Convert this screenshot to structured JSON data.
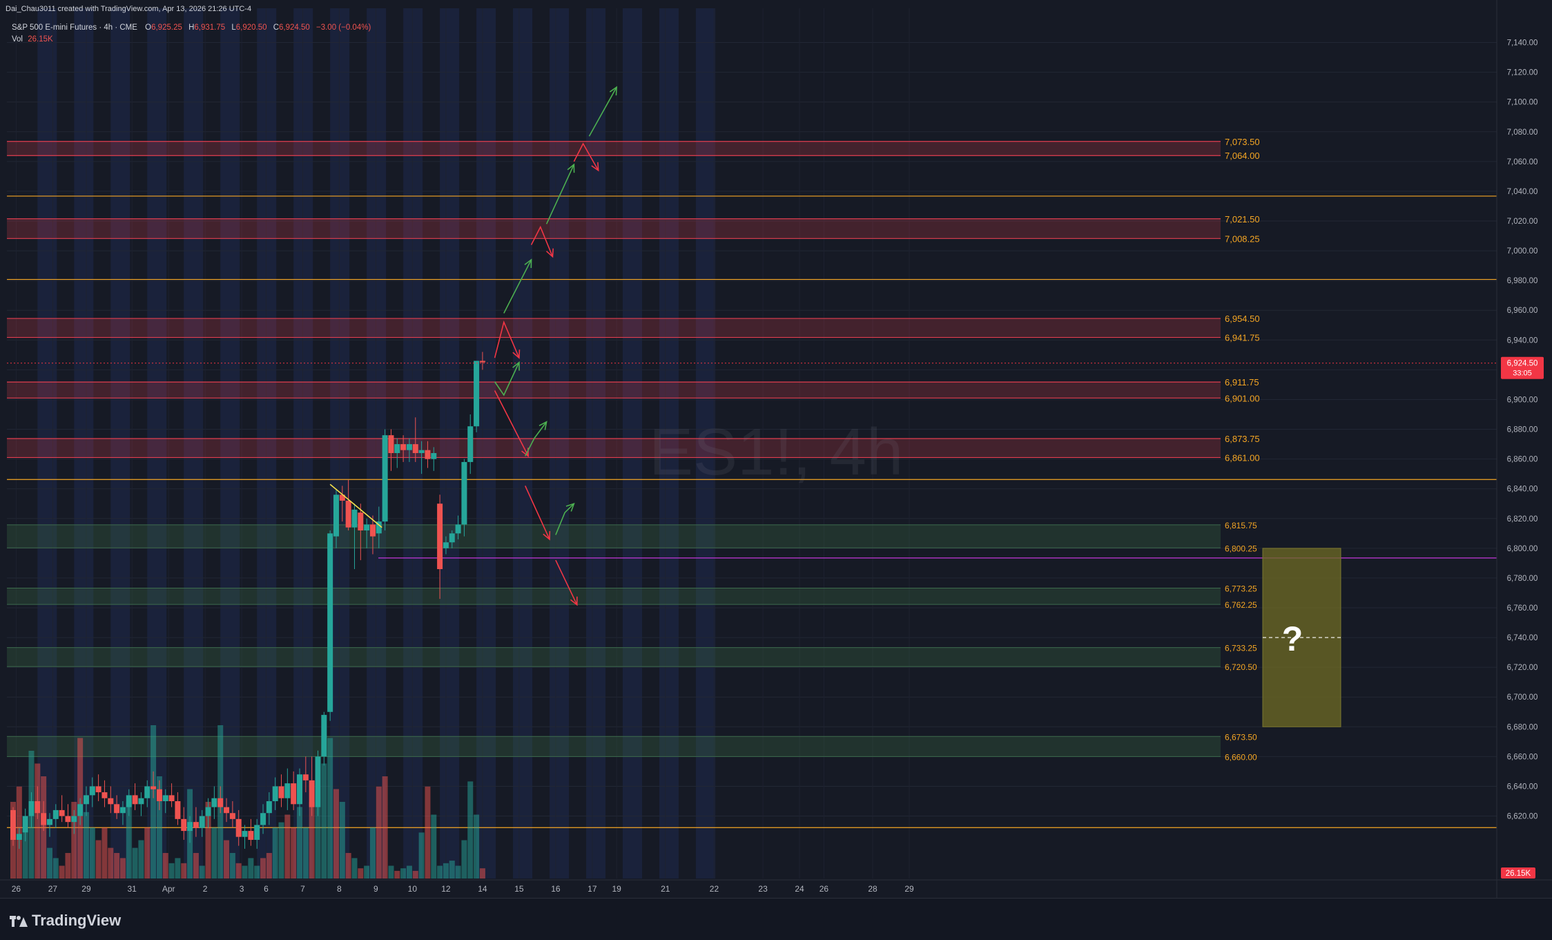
{
  "header": {
    "credit": "Dai_Chau3011 created with TradingView.com, Apr 13, 2026 21:26 UTC-4",
    "symbol_line": "S&P 500 E-mini Futures · 4h · CME",
    "ohlc": {
      "o_label": "O",
      "o": "6,925.25",
      "h_label": "H",
      "h": "6,931.75",
      "l_label": "L",
      "l": "6,920.50",
      "c_label": "C",
      "c": "6,924.50",
      "change": "−3.00 (−0.04%)"
    },
    "vol_label": "Vol",
    "vol_value": "26.15K"
  },
  "watermark": "ES1!, 4h",
  "footer": {
    "logo_text": "TradingView"
  },
  "colors": {
    "up": "#26a69a",
    "down": "#ef5350",
    "res_line": "#e23e4f",
    "sup_line": "#3d6b4d",
    "orange": "#f5a623",
    "purple": "#c337d9",
    "green_arrow": "#4caf50",
    "red_arrow": "#f23645",
    "box": "#5b5820"
  },
  "question_mark": "?",
  "chart_data": {
    "type": "candlestick",
    "symbol": "ES1!",
    "timeframe": "4h",
    "y_axis": {
      "ylim": [
        6578,
        7163
      ],
      "ticks": [
        6620,
        6640,
        6660,
        6680,
        6700,
        6720,
        6740,
        6760,
        6780,
        6800,
        6820,
        6840,
        6860,
        6880,
        6900,
        6920,
        6940,
        6960,
        6980,
        7000,
        7020,
        7040,
        7060,
        7080,
        7100,
        7120,
        7140
      ],
      "tick_labels": [
        "6,620.00",
        "6,640.00",
        "6,660.00",
        "6,680.00",
        "6,700.00",
        "6,720.00",
        "6,740.00",
        "6,760.00",
        "6,780.00",
        "6,800.00",
        "6,820.00",
        "6,840.00",
        "6,860.00",
        "6,880.00",
        "6,900.00",
        "6,920.00",
        "6,940.00",
        "6,960.00",
        "6,980.00",
        "7,000.00",
        "7,020.00",
        "7,040.00",
        "7,060.00",
        "7,080.00",
        "7,100.00",
        "7,120.00",
        "7,140.00"
      ]
    },
    "x_axis": {
      "tick_labels": [
        "26",
        "27",
        "29",
        "31",
        "Apr",
        "2",
        "3",
        "6",
        "7",
        "8",
        "9",
        "10",
        "12",
        "14",
        "15",
        "16",
        "17",
        "19",
        "21",
        "22",
        "23",
        "24",
        "26",
        "28",
        "29"
      ],
      "tick_bar_index": [
        0.5,
        6.5,
        12,
        19.5,
        25.5,
        31.5,
        37.5,
        41.5,
        47.5,
        53.5,
        59.5,
        65.5,
        71,
        77,
        83,
        89,
        95,
        99,
        107,
        115,
        123,
        129,
        133,
        141,
        147
      ]
    },
    "candles": [
      {
        "o": 6624,
        "h": 6626,
        "l": 6600,
        "c": 6604
      },
      {
        "o": 6604,
        "h": 6612,
        "l": 6598,
        "c": 6608
      },
      {
        "o": 6609,
        "h": 6625,
        "l": 6603,
        "c": 6620
      },
      {
        "o": 6620,
        "h": 6636,
        "l": 6612,
        "c": 6630
      },
      {
        "o": 6630,
        "h": 6640,
        "l": 6618,
        "c": 6622
      },
      {
        "o": 6622,
        "h": 6630,
        "l": 6610,
        "c": 6614
      },
      {
        "o": 6614,
        "h": 6622,
        "l": 6606,
        "c": 6618
      },
      {
        "o": 6618,
        "h": 6628,
        "l": 6612,
        "c": 6624
      },
      {
        "o": 6624,
        "h": 6634,
        "l": 6616,
        "c": 6620
      },
      {
        "o": 6620,
        "h": 6628,
        "l": 6612,
        "c": 6616
      },
      {
        "o": 6616,
        "h": 6624,
        "l": 6608,
        "c": 6620
      },
      {
        "o": 6620,
        "h": 6632,
        "l": 6614,
        "c": 6628
      },
      {
        "o": 6628,
        "h": 6640,
        "l": 6620,
        "c": 6634
      },
      {
        "o": 6634,
        "h": 6646,
        "l": 6626,
        "c": 6640
      },
      {
        "o": 6640,
        "h": 6648,
        "l": 6630,
        "c": 6636
      },
      {
        "o": 6636,
        "h": 6644,
        "l": 6626,
        "c": 6632
      },
      {
        "o": 6632,
        "h": 6640,
        "l": 6622,
        "c": 6628
      },
      {
        "o": 6628,
        "h": 6634,
        "l": 6618,
        "c": 6622
      },
      {
        "o": 6622,
        "h": 6630,
        "l": 6614,
        "c": 6626
      },
      {
        "o": 6626,
        "h": 6638,
        "l": 6620,
        "c": 6634
      },
      {
        "o": 6634,
        "h": 6642,
        "l": 6624,
        "c": 6628
      },
      {
        "o": 6628,
        "h": 6636,
        "l": 6620,
        "c": 6632
      },
      {
        "o": 6632,
        "h": 6644,
        "l": 6626,
        "c": 6640
      },
      {
        "o": 6640,
        "h": 6650,
        "l": 6632,
        "c": 6638
      },
      {
        "o": 6638,
        "h": 6644,
        "l": 6624,
        "c": 6630
      },
      {
        "o": 6630,
        "h": 6638,
        "l": 6622,
        "c": 6634
      },
      {
        "o": 6634,
        "h": 6642,
        "l": 6626,
        "c": 6630
      },
      {
        "o": 6630,
        "h": 6636,
        "l": 6614,
        "c": 6618
      },
      {
        "o": 6618,
        "h": 6626,
        "l": 6604,
        "c": 6610
      },
      {
        "o": 6610,
        "h": 6620,
        "l": 6602,
        "c": 6616
      },
      {
        "o": 6616,
        "h": 6626,
        "l": 6606,
        "c": 6612
      },
      {
        "o": 6612,
        "h": 6624,
        "l": 6606,
        "c": 6620
      },
      {
        "o": 6620,
        "h": 6632,
        "l": 6612,
        "c": 6626
      },
      {
        "o": 6626,
        "h": 6640,
        "l": 6618,
        "c": 6632
      },
      {
        "o": 6632,
        "h": 6640,
        "l": 6622,
        "c": 6626
      },
      {
        "o": 6626,
        "h": 6632,
        "l": 6616,
        "c": 6622
      },
      {
        "o": 6622,
        "h": 6630,
        "l": 6612,
        "c": 6618
      },
      {
        "o": 6618,
        "h": 6624,
        "l": 6600,
        "c": 6606
      },
      {
        "o": 6606,
        "h": 6614,
        "l": 6598,
        "c": 6610
      },
      {
        "o": 6610,
        "h": 6618,
        "l": 6600,
        "c": 6604
      },
      {
        "o": 6604,
        "h": 6618,
        "l": 6598,
        "c": 6614
      },
      {
        "o": 6614,
        "h": 6628,
        "l": 6608,
        "c": 6622
      },
      {
        "o": 6622,
        "h": 6636,
        "l": 6614,
        "c": 6630
      },
      {
        "o": 6630,
        "h": 6646,
        "l": 6624,
        "c": 6640
      },
      {
        "o": 6640,
        "h": 6648,
        "l": 6626,
        "c": 6632
      },
      {
        "o": 6632,
        "h": 6652,
        "l": 6624,
        "c": 6642
      },
      {
        "o": 6642,
        "h": 6650,
        "l": 6624,
        "c": 6628
      },
      {
        "o": 6628,
        "h": 6652,
        "l": 6620,
        "c": 6648
      },
      {
        "o": 6648,
        "h": 6660,
        "l": 6636,
        "c": 6644
      },
      {
        "o": 6644,
        "h": 6660,
        "l": 6620,
        "c": 6626
      },
      {
        "o": 6626,
        "h": 6664,
        "l": 6620,
        "c": 6660
      },
      {
        "o": 6660,
        "h": 6690,
        "l": 6654,
        "c": 6688
      },
      {
        "o": 6690,
        "h": 6812,
        "l": 6684,
        "c": 6810
      },
      {
        "o": 6808,
        "h": 6840,
        "l": 6800,
        "c": 6836
      },
      {
        "o": 6836,
        "h": 6842,
        "l": 6818,
        "c": 6832
      },
      {
        "o": 6832,
        "h": 6846,
        "l": 6812,
        "c": 6814
      },
      {
        "o": 6814,
        "h": 6830,
        "l": 6786,
        "c": 6826
      },
      {
        "o": 6824,
        "h": 6830,
        "l": 6792,
        "c": 6812
      },
      {
        "o": 6812,
        "h": 6820,
        "l": 6800,
        "c": 6816
      },
      {
        "o": 6816,
        "h": 6822,
        "l": 6796,
        "c": 6808
      },
      {
        "o": 6810,
        "h": 6828,
        "l": 6800,
        "c": 6818
      },
      {
        "o": 6818,
        "h": 6880,
        "l": 6812,
        "c": 6876
      },
      {
        "o": 6876,
        "h": 6880,
        "l": 6852,
        "c": 6864
      },
      {
        "o": 6864,
        "h": 6874,
        "l": 6854,
        "c": 6870
      },
      {
        "o": 6870,
        "h": 6876,
        "l": 6858,
        "c": 6866
      },
      {
        "o": 6866,
        "h": 6874,
        "l": 6858,
        "c": 6870
      },
      {
        "o": 6870,
        "h": 6888,
        "l": 6858,
        "c": 6864
      },
      {
        "o": 6864,
        "h": 6872,
        "l": 6850,
        "c": 6866
      },
      {
        "o": 6866,
        "h": 6872,
        "l": 6854,
        "c": 6860
      },
      {
        "o": 6860,
        "h": 6868,
        "l": 6852,
        "c": 6864
      },
      {
        "o": 6830,
        "h": 6836,
        "l": 6766,
        "c": 6786
      },
      {
        "o": 6800,
        "h": 6808,
        "l": 6796,
        "c": 6804
      },
      {
        "o": 6804,
        "h": 6812,
        "l": 6800,
        "c": 6810
      },
      {
        "o": 6810,
        "h": 6822,
        "l": 6806,
        "c": 6816
      },
      {
        "o": 6816,
        "h": 6860,
        "l": 6808,
        "c": 6858
      },
      {
        "o": 6858,
        "h": 6890,
        "l": 6850,
        "c": 6882
      },
      {
        "o": 6882,
        "h": 6924,
        "l": 6878,
        "c": 6926
      },
      {
        "o": 6926,
        "h": 6932,
        "l": 6920,
        "c": 6925
      }
    ],
    "volume": [
      {
        "v": 0.3,
        "up": false
      },
      {
        "v": 0.36,
        "up": false
      },
      {
        "v": 0.2,
        "up": true
      },
      {
        "v": 0.5,
        "up": true
      },
      {
        "v": 0.45,
        "up": false
      },
      {
        "v": 0.4,
        "up": false
      },
      {
        "v": 0.12,
        "up": true
      },
      {
        "v": 0.08,
        "up": true
      },
      {
        "v": 0.05,
        "up": false
      },
      {
        "v": 0.1,
        "up": false
      },
      {
        "v": 0.3,
        "up": false
      },
      {
        "v": 0.55,
        "up": false
      },
      {
        "v": 0.26,
        "up": true
      },
      {
        "v": 0.2,
        "up": true
      },
      {
        "v": 0.15,
        "up": false
      },
      {
        "v": 0.2,
        "up": false
      },
      {
        "v": 0.12,
        "up": false
      },
      {
        "v": 0.1,
        "up": false
      },
      {
        "v": 0.08,
        "up": false
      },
      {
        "v": 0.3,
        "up": true
      },
      {
        "v": 0.12,
        "up": true
      },
      {
        "v": 0.15,
        "up": true
      },
      {
        "v": 0.2,
        "up": false
      },
      {
        "v": 0.6,
        "up": true
      },
      {
        "v": 0.4,
        "up": true
      },
      {
        "v": 0.1,
        "up": false
      },
      {
        "v": 0.06,
        "up": true
      },
      {
        "v": 0.08,
        "up": true
      },
      {
        "v": 0.06,
        "up": false
      },
      {
        "v": 0.35,
        "up": true
      },
      {
        "v": 0.1,
        "up": false
      },
      {
        "v": 0.05,
        "up": true
      },
      {
        "v": 0.3,
        "up": false
      },
      {
        "v": 0.2,
        "up": true
      },
      {
        "v": 0.6,
        "up": true
      },
      {
        "v": 0.15,
        "up": false
      },
      {
        "v": 0.1,
        "up": true
      },
      {
        "v": 0.06,
        "up": false
      },
      {
        "v": 0.05,
        "up": true
      },
      {
        "v": 0.08,
        "up": true
      },
      {
        "v": 0.05,
        "up": true
      },
      {
        "v": 0.08,
        "up": false
      },
      {
        "v": 0.1,
        "up": false
      },
      {
        "v": 0.2,
        "up": true
      },
      {
        "v": 0.22,
        "up": true
      },
      {
        "v": 0.25,
        "up": false
      },
      {
        "v": 0.2,
        "up": false
      },
      {
        "v": 0.28,
        "up": true
      },
      {
        "v": 0.2,
        "up": true
      },
      {
        "v": 0.3,
        "up": false
      },
      {
        "v": 0.4,
        "up": true
      },
      {
        "v": 0.45,
        "up": true
      },
      {
        "v": 0.55,
        "up": true
      },
      {
        "v": 0.35,
        "up": false
      },
      {
        "v": 0.3,
        "up": true
      },
      {
        "v": 0.1,
        "up": false
      },
      {
        "v": 0.08,
        "up": true
      },
      {
        "v": 0.04,
        "up": false
      },
      {
        "v": 0.05,
        "up": true
      },
      {
        "v": 0.2,
        "up": true
      },
      {
        "v": 0.36,
        "up": false
      },
      {
        "v": 0.4,
        "up": false
      },
      {
        "v": 0.05,
        "up": true
      },
      {
        "v": 0.03,
        "up": false
      },
      {
        "v": 0.04,
        "up": true
      },
      {
        "v": 0.05,
        "up": true
      },
      {
        "v": 0.03,
        "up": false
      },
      {
        "v": 0.18,
        "up": true
      },
      {
        "v": 0.36,
        "up": false
      },
      {
        "v": 0.25,
        "up": true
      },
      {
        "v": 0.05,
        "up": true
      },
      {
        "v": 0.06,
        "up": true
      },
      {
        "v": 0.07,
        "up": true
      },
      {
        "v": 0.05,
        "up": true
      },
      {
        "v": 0.15,
        "up": true
      },
      {
        "v": 0.38,
        "up": true
      },
      {
        "v": 0.25,
        "up": true
      },
      {
        "v": 0.04,
        "up": false
      }
    ],
    "last_price": {
      "value": 6924.5,
      "label": "6,924.50",
      "countdown": "33:05"
    },
    "volume_axis_label": "26.15K",
    "resistance_zones": [
      {
        "top": 7073.5,
        "bottom": 7064.0,
        "top_label": "7,073.50",
        "bottom_label": "7,064.00"
      },
      {
        "top": 7021.5,
        "bottom": 7008.25,
        "top_label": "7,021.50",
        "bottom_label": "7,008.25"
      },
      {
        "top": 6954.5,
        "bottom": 6941.75,
        "top_label": "6,954.50",
        "bottom_label": "6,941.75"
      },
      {
        "top": 6911.75,
        "bottom": 6901.0,
        "top_label": "6,911.75",
        "bottom_label": "6,901.00"
      },
      {
        "top": 6873.75,
        "bottom": 6861.0,
        "top_label": "6,873.75",
        "bottom_label": "6,861.00"
      }
    ],
    "support_zones": [
      {
        "top": 6815.75,
        "bottom": 6800.25,
        "top_label": "6,815.75",
        "bottom_label": "6,800.25"
      },
      {
        "top": 6773.25,
        "bottom": 6762.25,
        "top_label": "6,773.25",
        "bottom_label": "6,762.25"
      },
      {
        "top": 6733.25,
        "bottom": 6720.5,
        "top_label": "6,733.25",
        "bottom_label": "6,720.50"
      },
      {
        "top": 6673.5,
        "bottom": 6660.0,
        "top_label": "6,673.50",
        "bottom_label": "6,660.00"
      }
    ],
    "horizontal_levels": [
      {
        "value": 7036.75,
        "label": "7,036.75",
        "color": "orange"
      },
      {
        "value": 6980.75,
        "label": "6,980.75",
        "color": "orange"
      },
      {
        "value": 6846.25,
        "label": "6,846.25",
        "color": "orange"
      },
      {
        "value": 6612.25,
        "label": "6,612.25",
        "color": "orange"
      },
      {
        "value": 6793.5,
        "label": "6,793.50",
        "color": "purple"
      }
    ],
    "target_box": {
      "top": 6800,
      "bottom": 6680,
      "mid": 6740
    },
    "trendline": {
      "from": {
        "bar": 52,
        "price": 6843
      },
      "to": {
        "bar": 60.5,
        "price": 6814
      }
    },
    "projection_paths": [
      {
        "color": "red",
        "points": [
          [
            79,
            6928
          ],
          [
            80.5,
            6952
          ],
          [
            83,
            6928
          ]
        ]
      },
      {
        "color": "green",
        "points": [
          [
            79,
            6912
          ],
          [
            80.5,
            6903
          ],
          [
            83,
            6925
          ]
        ]
      },
      {
        "color": "green",
        "points": [
          [
            80.5,
            6958
          ],
          [
            85,
            6994
          ]
        ]
      },
      {
        "color": "red",
        "points": [
          [
            85,
            7004
          ],
          [
            86.5,
            7016
          ],
          [
            88.5,
            6996
          ]
        ]
      },
      {
        "color": "green",
        "points": [
          [
            87.5,
            7018
          ],
          [
            92,
            7058
          ]
        ]
      },
      {
        "color": "red",
        "points": [
          [
            92,
            7060
          ],
          [
            93.5,
            7072
          ],
          [
            96,
            7054
          ]
        ]
      },
      {
        "color": "green",
        "points": [
          [
            94.5,
            7077
          ],
          [
            99,
            7110
          ]
        ]
      },
      {
        "color": "red",
        "points": [
          [
            79,
            6906
          ],
          [
            83,
            6874
          ],
          [
            84.5,
            6862
          ]
        ]
      },
      {
        "color": "green",
        "points": [
          [
            84,
            6862
          ],
          [
            85.5,
            6874
          ],
          [
            87.5,
            6885
          ]
        ]
      },
      {
        "color": "red",
        "points": [
          [
            84,
            6842
          ],
          [
            88,
            6806
          ]
        ]
      },
      {
        "color": "green",
        "points": [
          [
            89,
            6809
          ],
          [
            90.5,
            6824
          ],
          [
            92,
            6830
          ]
        ]
      },
      {
        "color": "red",
        "points": [
          [
            89,
            6792
          ],
          [
            92.5,
            6762
          ]
        ]
      }
    ]
  }
}
